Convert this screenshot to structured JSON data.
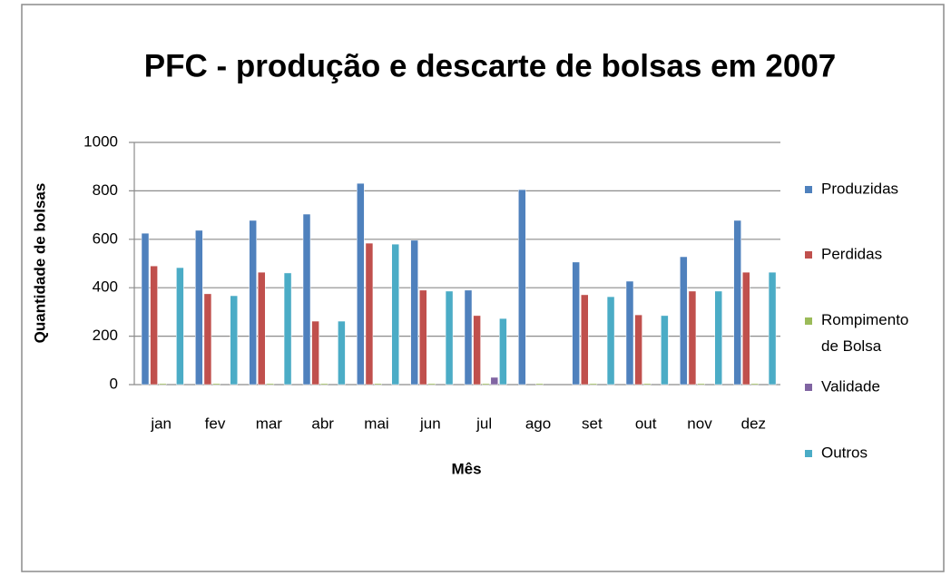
{
  "chart_data": {
    "type": "bar",
    "title": "PFC - produção e descarte de bolsas em 2007",
    "x_label": "Mês",
    "y_label": "Quantidade de bolsas",
    "categories": [
      "jan",
      "fev",
      "mar",
      "abr",
      "mai",
      "jun",
      "jul",
      "ago",
      "set",
      "out",
      "nov",
      "dez"
    ],
    "series": [
      {
        "name": "Produzidas",
        "color": "#4f81bd",
        "values": [
          625,
          637,
          678,
          704,
          831,
          596,
          390,
          805,
          506,
          427,
          528,
          678
        ]
      },
      {
        "name": "Perdidas",
        "color": "#c0504d",
        "values": [
          490,
          375,
          464,
          262,
          584,
          390,
          285,
          0,
          371,
          288,
          386,
          464
        ]
      },
      {
        "name": "Rompimento de Bolsa",
        "color": "#9bbb59",
        "values": [
          5,
          5,
          5,
          5,
          5,
          5,
          5,
          5,
          5,
          5,
          5,
          5
        ]
      },
      {
        "name": "Validade",
        "color": "#8064a2",
        "values": [
          0,
          0,
          0,
          0,
          0,
          0,
          30,
          0,
          0,
          0,
          0,
          0
        ]
      },
      {
        "name": "Outros",
        "color": "#4bacc6",
        "values": [
          483,
          367,
          461,
          262,
          580,
          386,
          273,
          0,
          363,
          285,
          386,
          464
        ]
      }
    ],
    "ylim": [
      0,
      1000
    ],
    "yticks": [
      0,
      200,
      400,
      600,
      800,
      1000
    ],
    "grid": true,
    "legend": "right"
  }
}
